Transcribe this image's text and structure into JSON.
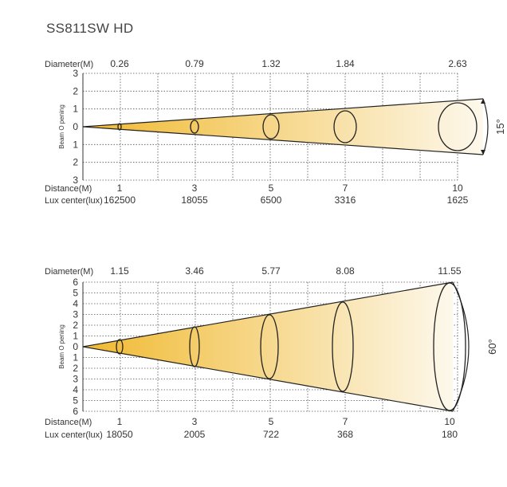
{
  "title": "SS811SW HD",
  "charts": [
    {
      "diameter_label": "Diameter(M)",
      "diameters": [
        "0.26",
        "0.79",
        "1.32",
        "1.84",
        "2.63"
      ],
      "y_ticks": [
        "3",
        "2",
        "1",
        "0",
        "1",
        "2",
        "3"
      ],
      "y_axis_label": "Beam O pening",
      "distance_label": "Distance(M)",
      "lux_label": "Lux center(lux)",
      "distances": [
        "1",
        "3",
        "5",
        "7",
        "10"
      ],
      "lux": [
        "162500",
        "18055",
        "6500",
        "3316",
        "1625"
      ],
      "angle": "15°"
    },
    {
      "diameter_label": "Diameter(M)",
      "diameters": [
        "1.15",
        "3.46",
        "5.77",
        "8.08",
        "11.55"
      ],
      "y_ticks": [
        "6",
        "5",
        "4",
        "3",
        "2",
        "1",
        "0",
        "1",
        "2",
        "3",
        "4",
        "5",
        "6"
      ],
      "y_axis_label": "Beam O pening",
      "distance_label": "Distance(M)",
      "lux_label": "Lux center(lux)",
      "distances": [
        "1",
        "3",
        "5",
        "7",
        "10"
      ],
      "lux": [
        "18050",
        "2005",
        "722",
        "368",
        "180"
      ],
      "angle": "60°"
    }
  ],
  "colors": {
    "beam_start": "#f0b930",
    "beam_end": "#fdf8ec"
  }
}
